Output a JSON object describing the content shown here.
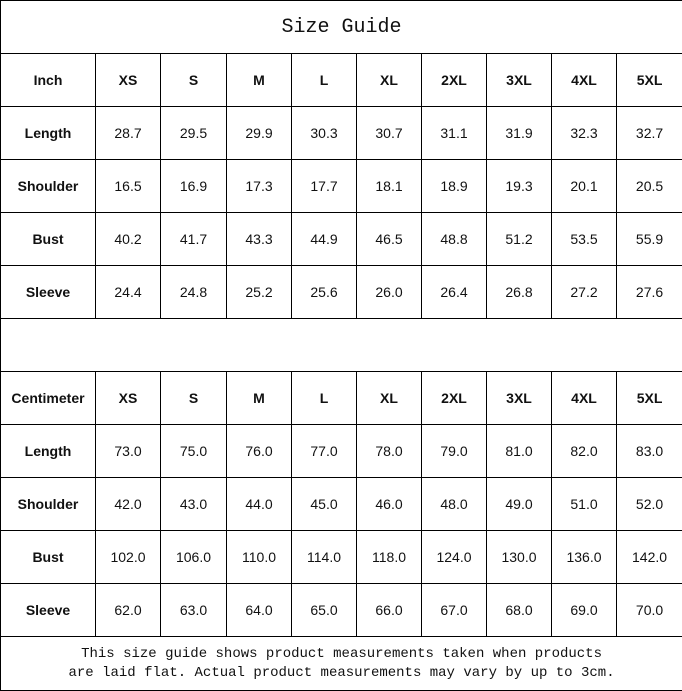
{
  "title": "Size Guide",
  "sizes": [
    "XS",
    "S",
    "M",
    "L",
    "XL",
    "2XL",
    "3XL",
    "4XL",
    "5XL"
  ],
  "tables": [
    {
      "unit": "Inch",
      "rows": [
        {
          "label": "Length",
          "values": [
            "28.7",
            "29.5",
            "29.9",
            "30.3",
            "30.7",
            "31.1",
            "31.9",
            "32.3",
            "32.7"
          ]
        },
        {
          "label": "Shoulder",
          "values": [
            "16.5",
            "16.9",
            "17.3",
            "17.7",
            "18.1",
            "18.9",
            "19.3",
            "20.1",
            "20.5"
          ]
        },
        {
          "label": "Bust",
          "values": [
            "40.2",
            "41.7",
            "43.3",
            "44.9",
            "46.5",
            "48.8",
            "51.2",
            "53.5",
            "55.9"
          ]
        },
        {
          "label": "Sleeve",
          "values": [
            "24.4",
            "24.8",
            "25.2",
            "25.6",
            "26.0",
            "26.4",
            "26.8",
            "27.2",
            "27.6"
          ]
        }
      ]
    },
    {
      "unit": "Centimeter",
      "rows": [
        {
          "label": "Length",
          "values": [
            "73.0",
            "75.0",
            "76.0",
            "77.0",
            "78.0",
            "79.0",
            "81.0",
            "82.0",
            "83.0"
          ]
        },
        {
          "label": "Shoulder",
          "values": [
            "42.0",
            "43.0",
            "44.0",
            "45.0",
            "46.0",
            "48.0",
            "49.0",
            "51.0",
            "52.0"
          ]
        },
        {
          "label": "Bust",
          "values": [
            "102.0",
            "106.0",
            "110.0",
            "114.0",
            "118.0",
            "124.0",
            "130.0",
            "136.0",
            "142.0"
          ]
        },
        {
          "label": "Sleeve",
          "values": [
            "62.0",
            "63.0",
            "64.0",
            "65.0",
            "66.0",
            "67.0",
            "68.0",
            "69.0",
            "70.0"
          ]
        }
      ]
    }
  ],
  "footer": {
    "line1": "This size guide shows product measurements taken when products",
    "line2": "are laid flat. Actual product measurements may vary by up to 3cm."
  }
}
